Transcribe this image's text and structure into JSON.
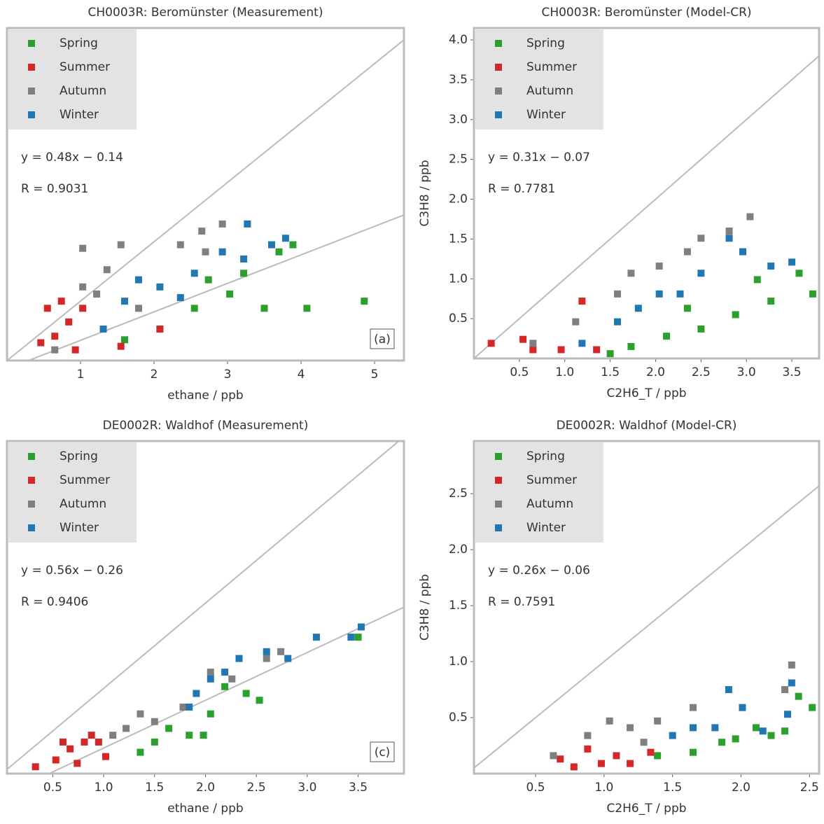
{
  "chart_data": [
    {
      "type": "scatter",
      "title": "CH0003R: Beromünster (Measurement)",
      "xlabel": "ethane / ppb",
      "xlim": [
        0,
        5.4
      ],
      "ylim": [
        0,
        5.6
      ],
      "xticks": [
        1,
        2,
        3,
        4,
        5
      ],
      "annotations": [
        "y = 0.48x − 0.14",
        "R = 0.9031"
      ],
      "panel_label": "(a)",
      "fit": {
        "slope": 0.48,
        "intercept": -0.14
      },
      "series": [
        {
          "name": "Spring",
          "color": "#2ca02c",
          "x": [
            3.89,
            3.03,
            3.5,
            4.08,
            4.86,
            2.55,
            2.08,
            1.6,
            3.22,
            2.74,
            3.7
          ],
          "y": [
            1.95,
            1.12,
            0.88,
            0.88,
            1.0,
            0.88,
            0.53,
            0.35,
            1.47,
            1.36,
            1.83
          ]
        },
        {
          "name": "Summer",
          "color": "#d62728",
          "x": [
            0.55,
            0.74,
            0.84,
            0.65,
            0.93,
            1.55,
            2.08,
            0.46,
            1.03
          ],
          "y": [
            0.88,
            1.0,
            0.65,
            0.41,
            0.18,
            0.24,
            0.53,
            0.3,
            0.88
          ]
        },
        {
          "name": "Autumn",
          "color": "#7f7f7f",
          "x": [
            1.03,
            1.55,
            1.36,
            1.22,
            2.36,
            2.65,
            2.93,
            2.7,
            1.79,
            0.65,
            1.03
          ],
          "y": [
            1.89,
            1.95,
            1.53,
            1.12,
            1.95,
            2.18,
            2.3,
            1.83,
            0.88,
            0.18,
            1.24
          ]
        },
        {
          "name": "Winter",
          "color": "#1f77b4",
          "x": [
            3.27,
            3.6,
            2.93,
            2.55,
            2.08,
            1.6,
            1.31,
            2.36,
            3.22,
            3.79,
            1.79
          ],
          "y": [
            2.3,
            1.95,
            1.83,
            1.47,
            1.24,
            1.0,
            0.53,
            1.06,
            1.71,
            2.06,
            1.36
          ]
        }
      ]
    },
    {
      "type": "scatter",
      "title": "CH0003R: Beromünster (Model-CR)",
      "xlabel": "C2H6_T / ppb",
      "ylabel": "C3H8 / ppb",
      "xlim": [
        0,
        3.8
      ],
      "ylim": [
        0,
        4.15
      ],
      "xticks": [
        0.5,
        {
          "value": 1,
          "label": "1.0"
        },
        1.5,
        {
          "value": 2,
          "label": "2.0"
        },
        2.5,
        {
          "value": 3,
          "label": "3.0"
        },
        3.5
      ],
      "yticks": [
        0.5,
        {
          "value": 1,
          "label": "1.0"
        },
        1.5,
        {
          "value": 2,
          "label": "2.0"
        },
        2.5,
        {
          "value": 3,
          "label": "3.0"
        },
        3.5,
        {
          "value": 4,
          "label": "4.0"
        }
      ],
      "annotations": [
        "y = 0.31x − 0.07",
        "R = 0.7781"
      ],
      "series": [
        {
          "name": "Spring",
          "color": "#2ca02c",
          "x": [
            1.5,
            2.12,
            2.88,
            3.58,
            3.73,
            2.5,
            3.27,
            1.73,
            2.35,
            3.12
          ],
          "y": [
            0.06,
            0.28,
            0.55,
            1.07,
            0.81,
            0.37,
            0.72,
            0.15,
            0.63,
            0.99
          ]
        },
        {
          "name": "Summer",
          "color": "#d62728",
          "x": [
            0.19,
            0.54,
            0.96,
            1.19,
            0.65,
            1.35
          ],
          "y": [
            0.19,
            0.24,
            0.11,
            0.72,
            0.11,
            0.11
          ]
        },
        {
          "name": "Autumn",
          "color": "#7f7f7f",
          "x": [
            3.04,
            2.5,
            2.04,
            1.58,
            1.12,
            0.65,
            2.81,
            1.73,
            2.35
          ],
          "y": [
            1.78,
            1.51,
            1.16,
            0.81,
            0.46,
            0.19,
            1.6,
            1.07,
            1.34
          ]
        },
        {
          "name": "Winter",
          "color": "#1f77b4",
          "x": [
            3.5,
            2.96,
            2.5,
            2.04,
            1.58,
            1.19,
            3.27,
            2.27,
            2.81,
            1.81
          ],
          "y": [
            1.21,
            1.34,
            1.07,
            0.81,
            0.46,
            0.19,
            1.16,
            0.81,
            1.51,
            0.63
          ]
        }
      ]
    },
    {
      "type": "scatter",
      "title": "DE0002R: Waldhof (Measurement)",
      "xlabel": "ethane / ppb",
      "xlim": [
        0.05,
        3.95
      ],
      "ylim": [
        0,
        3.9
      ],
      "xticks": [
        0.5,
        {
          "value": 1,
          "label": "1.0"
        },
        1.5,
        {
          "value": 2,
          "label": "2.0"
        },
        2.5,
        {
          "value": 3,
          "label": "3.0"
        },
        3.5
      ],
      "annotations": [
        "y = 0.56x − 0.26",
        "R = 0.9406"
      ],
      "panel_label": "(c)",
      "fit": {
        "slope": 0.56,
        "intercept": -0.26
      },
      "series": [
        {
          "name": "Spring",
          "color": "#2ca02c",
          "x": [
            1.36,
            1.84,
            2.05,
            2.19,
            2.53,
            1.64,
            1.98,
            3.5,
            2.4,
            1.5
          ],
          "y": [
            0.25,
            0.45,
            0.7,
            1.02,
            0.86,
            0.53,
            0.45,
            1.6,
            0.94,
            0.37
          ]
        },
        {
          "name": "Summer",
          "color": "#d62728",
          "x": [
            0.33,
            0.53,
            0.67,
            0.81,
            0.95,
            0.74,
            0.6,
            1.02,
            0.88
          ],
          "y": [
            0.08,
            0.16,
            0.29,
            0.37,
            0.37,
            0.12,
            0.37,
            0.2,
            0.45
          ]
        },
        {
          "name": "Autumn",
          "color": "#7f7f7f",
          "x": [
            1.22,
            1.5,
            1.78,
            2.05,
            2.26,
            2.74,
            1.36,
            1.09,
            2.6
          ],
          "y": [
            0.53,
            0.61,
            0.78,
            1.19,
            1.11,
            1.43,
            0.7,
            0.45,
            1.35
          ]
        },
        {
          "name": "Winter",
          "color": "#1f77b4",
          "x": [
            1.91,
            2.19,
            2.33,
            2.6,
            2.81,
            3.09,
            3.43,
            3.53,
            1.84,
            2.05
          ],
          "y": [
            0.94,
            1.19,
            1.35,
            1.43,
            1.35,
            1.6,
            1.6,
            1.72,
            0.78,
            1.11
          ]
        }
      ]
    },
    {
      "type": "scatter",
      "title": "DE0002R: Waldhof (Model-CR)",
      "xlabel": "C2H6_T / ppb",
      "ylabel": "C3H8 / ppb",
      "xlim": [
        0.05,
        2.57
      ],
      "ylim": [
        0,
        2.97
      ],
      "xticks": [
        0.5,
        {
          "value": 1,
          "label": "1.0"
        },
        1.5,
        {
          "value": 2,
          "label": "2.0"
        },
        2.5
      ],
      "yticks": [
        0.5,
        {
          "value": 1,
          "label": "1.0"
        },
        1.5,
        {
          "value": 2,
          "label": "2.0"
        },
        2.5
      ],
      "annotations": [
        "y = 0.26x − 0.06",
        "R = 0.7591"
      ],
      "series": [
        {
          "name": "Spring",
          "color": "#2ca02c",
          "x": [
            1.39,
            1.65,
            1.96,
            2.22,
            2.42,
            2.52,
            1.86,
            2.11,
            2.32
          ],
          "y": [
            0.16,
            0.19,
            0.31,
            0.34,
            0.69,
            0.59,
            0.28,
            0.41,
            0.38
          ]
        },
        {
          "name": "Summer",
          "color": "#d62728",
          "x": [
            0.78,
            0.98,
            1.19,
            1.34,
            0.68,
            1.09,
            0.88
          ],
          "y": [
            0.06,
            0.09,
            0.09,
            0.19,
            0.13,
            0.16,
            0.22
          ]
        },
        {
          "name": "Autumn",
          "color": "#7f7f7f",
          "x": [
            0.63,
            0.88,
            1.19,
            1.39,
            1.65,
            2.37,
            2.32,
            1.29,
            1.04
          ],
          "y": [
            0.16,
            0.34,
            0.41,
            0.47,
            0.59,
            0.97,
            0.75,
            0.28,
            0.47
          ]
        },
        {
          "name": "Winter",
          "color": "#1f77b4",
          "x": [
            1.91,
            2.01,
            2.37,
            2.34,
            1.65,
            2.16,
            1.81,
            1.5
          ],
          "y": [
            0.75,
            0.59,
            0.81,
            0.53,
            0.41,
            0.38,
            0.41,
            0.34
          ]
        }
      ]
    }
  ]
}
